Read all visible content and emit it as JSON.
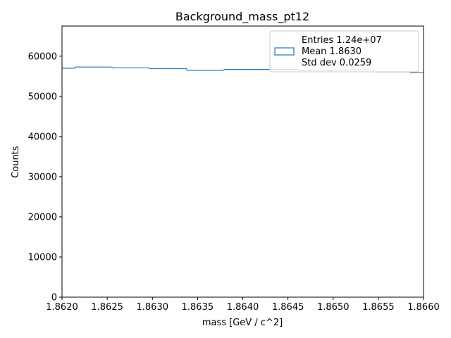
{
  "chart_data": {
    "type": "bar",
    "title": "Background_mass_pt12",
    "xlabel": "mass [GeV / c^2]",
    "ylabel": "Counts",
    "xlim": [
      1.862,
      1.866
    ],
    "ylim": [
      0,
      67500
    ],
    "grid": false,
    "legend_placement": "top-right",
    "histtype": "step",
    "color": "#1f77b4",
    "x_ticks": [
      1.862,
      1.8625,
      1.863,
      1.8635,
      1.864,
      1.8645,
      1.865,
      1.8655,
      1.866
    ],
    "x_tick_labels": [
      "1.8620",
      "1.8625",
      "1.8630",
      "1.8635",
      "1.8640",
      "1.8645",
      "1.8650",
      "1.8655",
      "1.8660"
    ],
    "y_ticks": [
      0,
      10000,
      20000,
      30000,
      40000,
      50000,
      60000
    ],
    "y_tick_labels": [
      "0",
      "10000",
      "20000",
      "30000",
      "40000",
      "50000",
      "60000"
    ],
    "bin_edges": [
      1.862,
      1.8621416,
      1.8625541,
      1.8629666,
      1.8633791,
      1.8637916,
      1.8642041,
      1.8646166,
      1.8650291,
      1.8654416,
      1.8658541,
      1.866
    ],
    "values": [
      57000,
      57300,
      57100,
      56900,
      56500,
      56700,
      56700,
      56500,
      56600,
      56100,
      55900
    ],
    "legend": {
      "lines": [
        "Entries 1.24e+07",
        "Mean 1.8630",
        "Std dev 0.0259"
      ]
    }
  }
}
